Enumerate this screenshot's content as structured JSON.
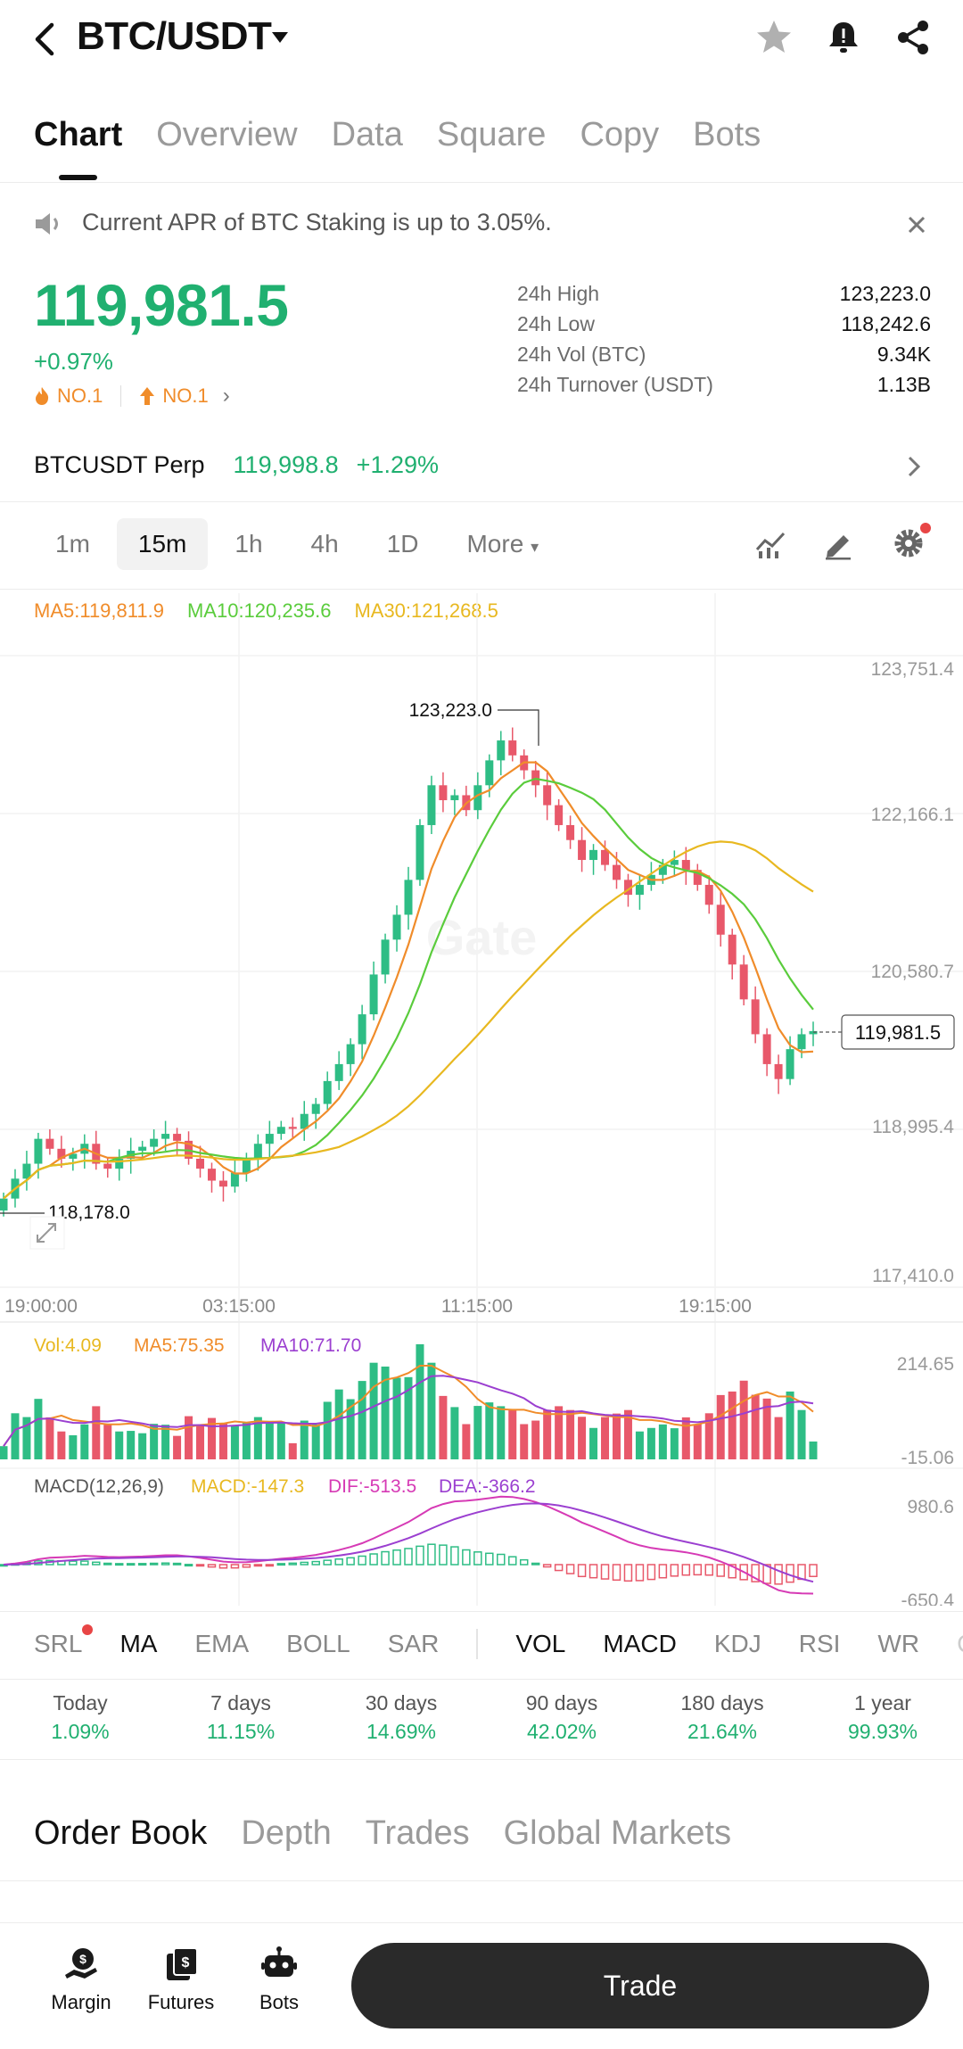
{
  "header": {
    "pair": "BTC/USDT"
  },
  "tabs": [
    "Chart",
    "Overview",
    "Data",
    "Square",
    "Copy",
    "Bots"
  ],
  "banner": {
    "text": "Current APR of BTC Staking is up to 3.05%."
  },
  "price": {
    "last": "119,981.5",
    "change": "+0.97%",
    "rank1": "NO.1",
    "rank2": "NO.1"
  },
  "stats": [
    {
      "label": "24h High",
      "value": "123,223.0"
    },
    {
      "label": "24h Low",
      "value": "118,242.6"
    },
    {
      "label": "24h Vol (BTC)",
      "value": "9.34K"
    },
    {
      "label": "24h Turnover (USDT)",
      "value": "1.13B"
    }
  ],
  "perp": {
    "name": "BTCUSDT Perp",
    "price": "119,998.8",
    "change": "+1.29%"
  },
  "intervals": [
    "1m",
    "15m",
    "1h",
    "4h",
    "1D"
  ],
  "interval_more": "More",
  "legend": {
    "ma5": "MA5:119,811.9",
    "ma10": "MA10:120,235.6",
    "ma30": "MA30:121,268.5"
  },
  "chart": {
    "price_ticks": [
      "123,751.4",
      "122,166.1",
      "120,580.7",
      "118,995.4",
      "117,410.0"
    ],
    "time_ticks": [
      "19:00:00",
      "03:15:00",
      "11:15:00",
      "19:15:00"
    ],
    "high_label": "123,223.0",
    "low_label": "118,178.0",
    "current_label": "119,981.5",
    "vol_legend": {
      "vol": "Vol:4.09",
      "ma5": "MA5:75.35",
      "ma10": "MA10:71.70"
    },
    "vol_ticks": [
      "214.65",
      "-15.06"
    ],
    "macd_legend": {
      "name": "MACD(12,26,9)",
      "macd": "MACD:-147.3",
      "dif": "DIF:-513.5",
      "dea": "DEA:-366.2"
    },
    "macd_ticks": [
      "980.6",
      "-650.4"
    ],
    "colors": {
      "up": "#2ebd85",
      "down": "#e8586a",
      "ma5": "#f08c2a",
      "ma10": "#5acc3c",
      "ma30": "#e8b820",
      "dif": "#d63ab5",
      "dea": "#9b3fd0"
    }
  },
  "chart_data": {
    "type": "candlestick",
    "interval": "15m",
    "price_range": [
      117410.0,
      123751.4
    ],
    "closes": [
      118300,
      118500,
      118650,
      118900,
      118800,
      118700,
      118750,
      118850,
      118650,
      118600,
      118700,
      118780,
      118820,
      118900,
      118950,
      118880,
      118700,
      118600,
      118480,
      118420,
      118560,
      118700,
      118850,
      118950,
      119020,
      119000,
      119150,
      119250,
      119480,
      119650,
      119850,
      120150,
      120550,
      120900,
      121150,
      121500,
      122050,
      122450,
      122300,
      122350,
      122200,
      122450,
      122700,
      122900,
      122750,
      122600,
      122450,
      122250,
      122050,
      121900,
      121700,
      121800,
      121650,
      121500,
      121350,
      121450,
      121550,
      121650,
      121700,
      121600,
      121450,
      121250,
      120950,
      120650,
      120300,
      119950,
      119650,
      119500,
      119800,
      119950,
      119981.5
    ],
    "volume_range": [
      -15.06,
      214.65
    ],
    "macd_range": [
      -650.4,
      980.6
    ]
  },
  "indicators": {
    "main": [
      "SRL",
      "MA",
      "EMA",
      "BOLL",
      "SAR"
    ],
    "sub": [
      "VOL",
      "MACD",
      "KDJ",
      "RSI",
      "WR",
      "C"
    ]
  },
  "performance": [
    {
      "label": "Today",
      "value": "1.09%"
    },
    {
      "label": "7 days",
      "value": "11.15%"
    },
    {
      "label": "30 days",
      "value": "14.69%"
    },
    {
      "label": "90 days",
      "value": "42.02%"
    },
    {
      "label": "180 days",
      "value": "21.64%"
    },
    {
      "label": "1 year",
      "value": "99.93%"
    }
  ],
  "book_tabs": [
    "Order Book",
    "Depth",
    "Trades",
    "Global Markets"
  ],
  "nav": {
    "margin": "Margin",
    "futures": "Futures",
    "bots": "Bots"
  },
  "trade_label": "Trade"
}
